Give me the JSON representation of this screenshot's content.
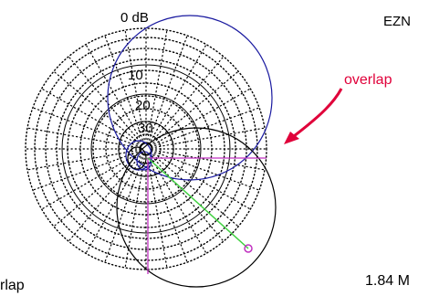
{
  "chart_data": {
    "type": "polar",
    "rings": [
      {
        "db": 0,
        "label": "0 dB"
      },
      {
        "db": -10,
        "label": "10"
      },
      {
        "db": -20,
        "label": "20"
      },
      {
        "db": -30,
        "label": "30"
      }
    ],
    "series": [
      {
        "color": "#1a1aa0",
        "lobe_direction_deg": 0,
        "peak_db": 0
      },
      {
        "color": "#000000",
        "lobe_direction_deg": 135,
        "peak_db": -4
      }
    ],
    "markers": [
      {
        "color": "#c030c0",
        "direction_deg": 90
      },
      {
        "color": "#c030c0",
        "direction_deg": 180
      },
      {
        "color": "#40d040",
        "direction_deg": 135
      }
    ],
    "annotations": {
      "overlap_arrow": "overlap",
      "bottom_left": "rlap",
      "top_right": "EZN",
      "bottom_right": "1.84 M"
    }
  },
  "colors": {
    "blue_trace": "#1a1aa0",
    "black_trace": "#000000",
    "magenta_marker": "#c030c0",
    "green_marker": "#40d040",
    "arrow": "#e0003a"
  }
}
